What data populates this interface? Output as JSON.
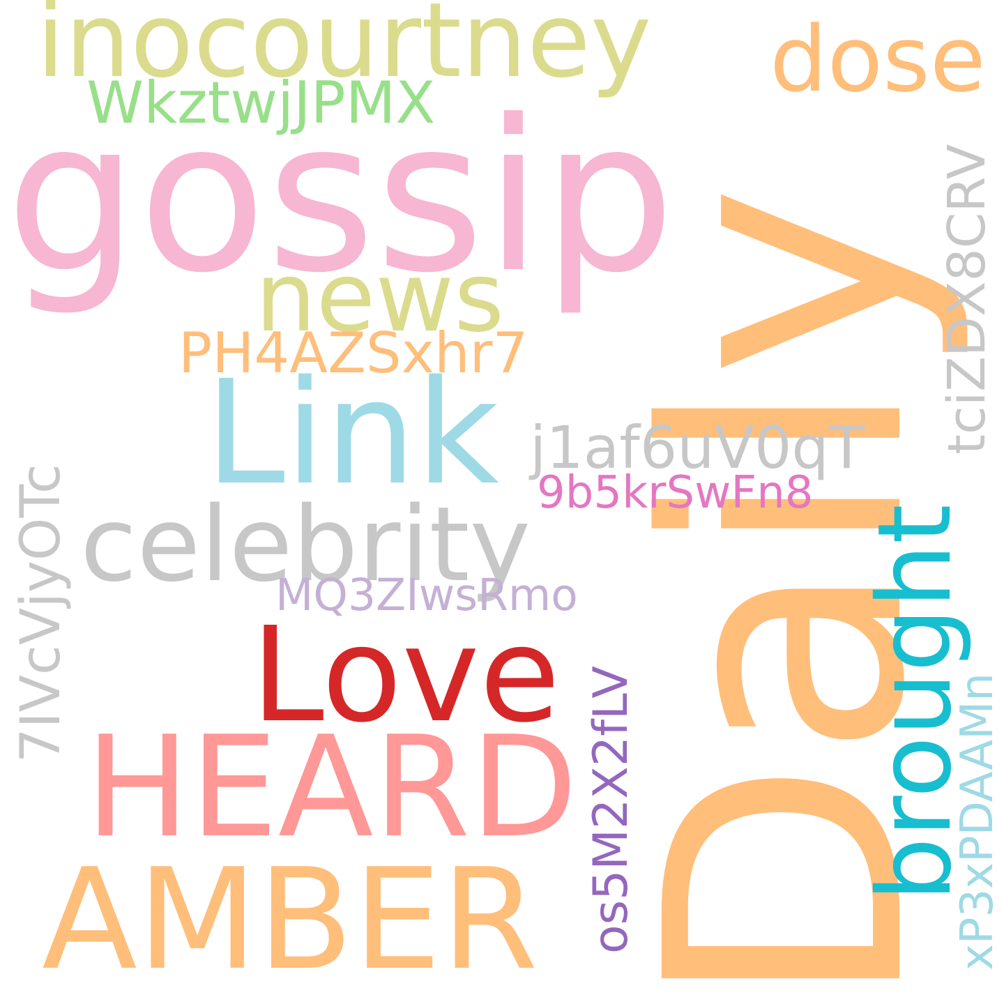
{
  "word_cloud": {
    "background": "#ffffff",
    "words": [
      {
        "id": "daily",
        "text": "Daily",
        "color": "#ffbe7a",
        "orientation": "vertical"
      },
      {
        "id": "gossip",
        "text": "gossip",
        "color": "#f7b6d2",
        "orientation": "horizontal"
      },
      {
        "id": "inocourtney",
        "text": "inocourtney",
        "color": "#dbdb8d",
        "orientation": "horizontal"
      },
      {
        "id": "dose",
        "text": "dose",
        "color": "#ffbe7a",
        "orientation": "horizontal"
      },
      {
        "id": "wkz",
        "text": "WkztwjJPMX",
        "color": "#98df8a",
        "orientation": "horizontal"
      },
      {
        "id": "news",
        "text": "news",
        "color": "#dbdb8d",
        "orientation": "horizontal"
      },
      {
        "id": "ph4",
        "text": "PH4AZSxhr7",
        "color": "#ffbe7a",
        "orientation": "horizontal"
      },
      {
        "id": "link",
        "text": "Link",
        "color": "#9edae5",
        "orientation": "horizontal"
      },
      {
        "id": "j1af",
        "text": "j1af6uV0qT",
        "color": "#c7c7c7",
        "orientation": "horizontal"
      },
      {
        "id": "9b5",
        "text": "9b5krSwFn8",
        "color": "#e377c2",
        "orientation": "horizontal"
      },
      {
        "id": "celebrity",
        "text": "celebrity",
        "color": "#c7c7c7",
        "orientation": "horizontal"
      },
      {
        "id": "mq3",
        "text": "MQ3ZIwsRmo",
        "color": "#c5b0d5",
        "orientation": "horizontal"
      },
      {
        "id": "love",
        "text": "Love",
        "color": "#d62728",
        "orientation": "horizontal"
      },
      {
        "id": "heard",
        "text": "HEARD",
        "color": "#ff9896",
        "orientation": "horizontal"
      },
      {
        "id": "amber",
        "text": "AMBER",
        "color": "#ffbe7a",
        "orientation": "horizontal"
      },
      {
        "id": "tci",
        "text": "tciZDX8CRV",
        "color": "#c7c7c7",
        "orientation": "vertical"
      },
      {
        "id": "7iv",
        "text": "7IVcVjyOTc",
        "color": "#c7c7c7",
        "orientation": "vertical"
      },
      {
        "id": "brought",
        "text": "brought",
        "color": "#17becf",
        "orientation": "vertical"
      },
      {
        "id": "os5",
        "text": "os5M2X2fLV",
        "color": "#9467bd",
        "orientation": "vertical"
      },
      {
        "id": "xp3",
        "text": "xP3xPDAAMn",
        "color": "#9edae5",
        "orientation": "vertical"
      }
    ]
  }
}
